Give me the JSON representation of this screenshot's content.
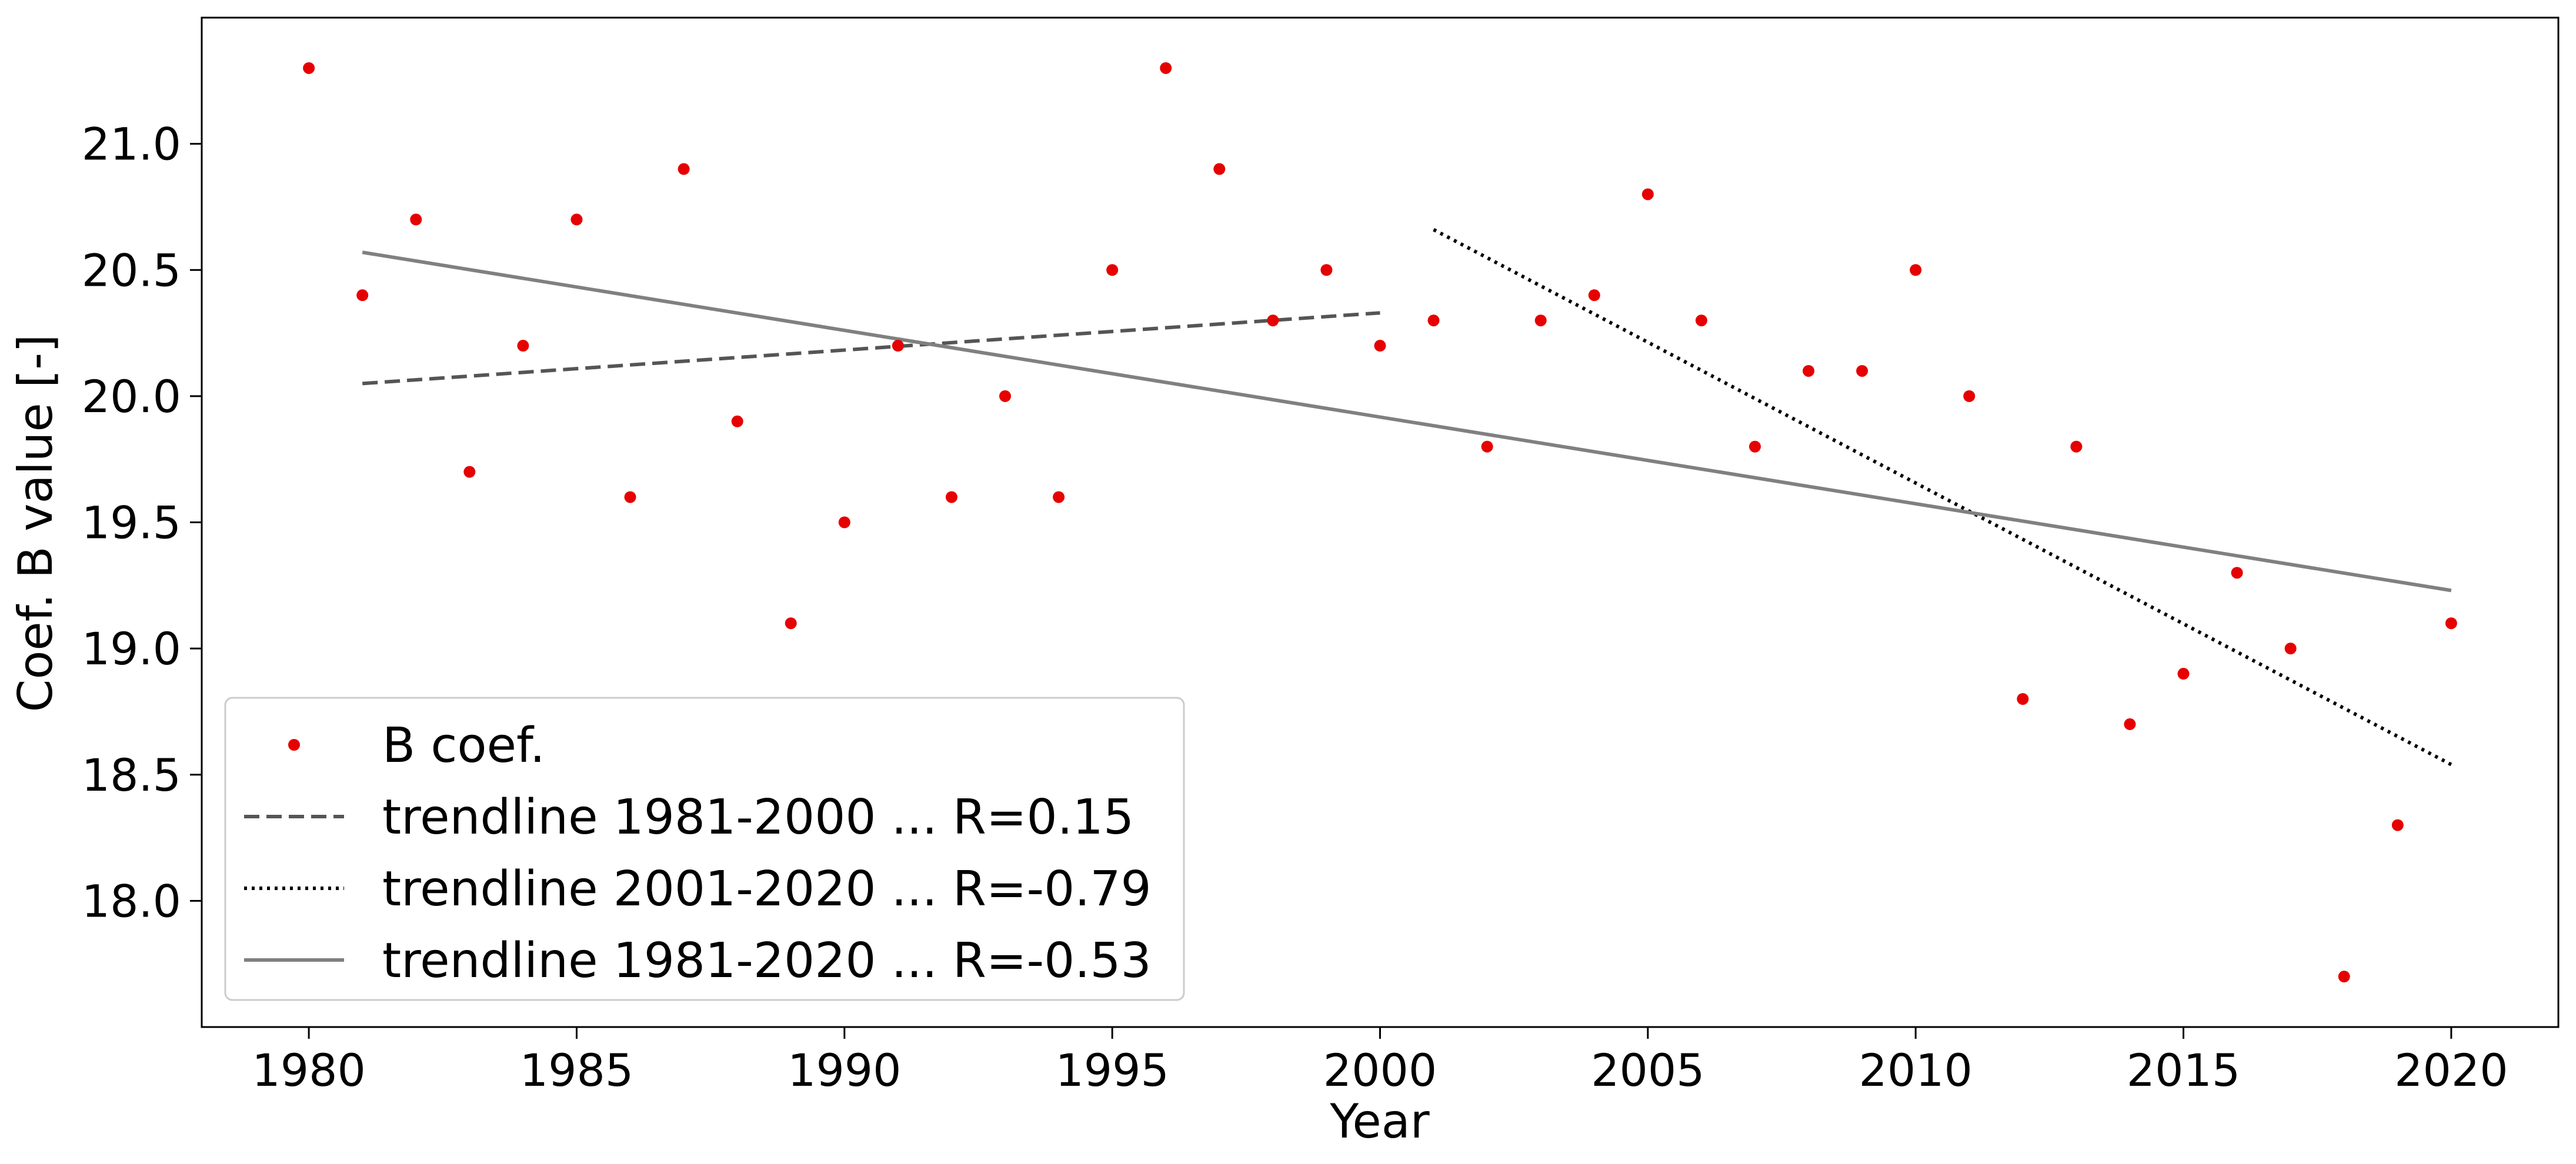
{
  "chart_data": {
    "type": "scatter",
    "xlabel": "Year",
    "ylabel": "Coef. B value [-]",
    "xlim": [
      1978,
      2022
    ],
    "ylim": [
      17.5,
      21.5
    ],
    "xticks": [
      1980,
      1985,
      1990,
      1995,
      2000,
      2005,
      2010,
      2015,
      2020
    ],
    "yticks": [
      "18.0",
      "18.5",
      "19.0",
      "19.5",
      "20.0",
      "20.5",
      "21.0"
    ],
    "grid": false,
    "legend_position": "lower-left",
    "series": [
      {
        "name": "B coef.",
        "kind": "points",
        "color": "#e60000",
        "x": [
          1980,
          1981,
          1982,
          1983,
          1984,
          1985,
          1986,
          1987,
          1988,
          1989,
          1990,
          1991,
          1992,
          1993,
          1994,
          1995,
          1996,
          1997,
          1998,
          1999,
          2000,
          2001,
          2002,
          2003,
          2004,
          2005,
          2006,
          2007,
          2008,
          2009,
          2010,
          2011,
          2012,
          2013,
          2014,
          2015,
          2016,
          2017,
          2018,
          2019,
          2020
        ],
        "y": [
          21.3,
          20.4,
          20.7,
          19.7,
          20.2,
          20.7,
          19.6,
          20.9,
          19.9,
          19.1,
          19.5,
          20.2,
          19.6,
          20.0,
          19.6,
          20.5,
          21.3,
          20.9,
          20.3,
          20.5,
          20.2,
          20.3,
          19.8,
          20.3,
          20.4,
          20.8,
          20.3,
          19.8,
          20.1,
          20.1,
          20.5,
          20.0,
          18.8,
          19.8,
          18.7,
          18.9,
          19.3,
          19.0,
          17.7,
          18.3,
          19.1
        ]
      },
      {
        "name": "trendline 1981-2000 ... R=0.15",
        "kind": "line",
        "style": "dashed",
        "color": "#555555",
        "x": [
          1981,
          2000
        ],
        "y": [
          20.05,
          20.33
        ]
      },
      {
        "name": "trendline 2001-2020 ... R=-0.79",
        "kind": "line",
        "style": "dotted",
        "color": "#000000",
        "x": [
          2001,
          2020
        ],
        "y": [
          20.66,
          18.54
        ]
      },
      {
        "name": "trendline 1981-2020 ... R=-0.53",
        "kind": "line",
        "style": "solid",
        "color": "#808080",
        "x": [
          1981,
          2020
        ],
        "y": [
          20.57,
          19.23
        ]
      }
    ]
  }
}
